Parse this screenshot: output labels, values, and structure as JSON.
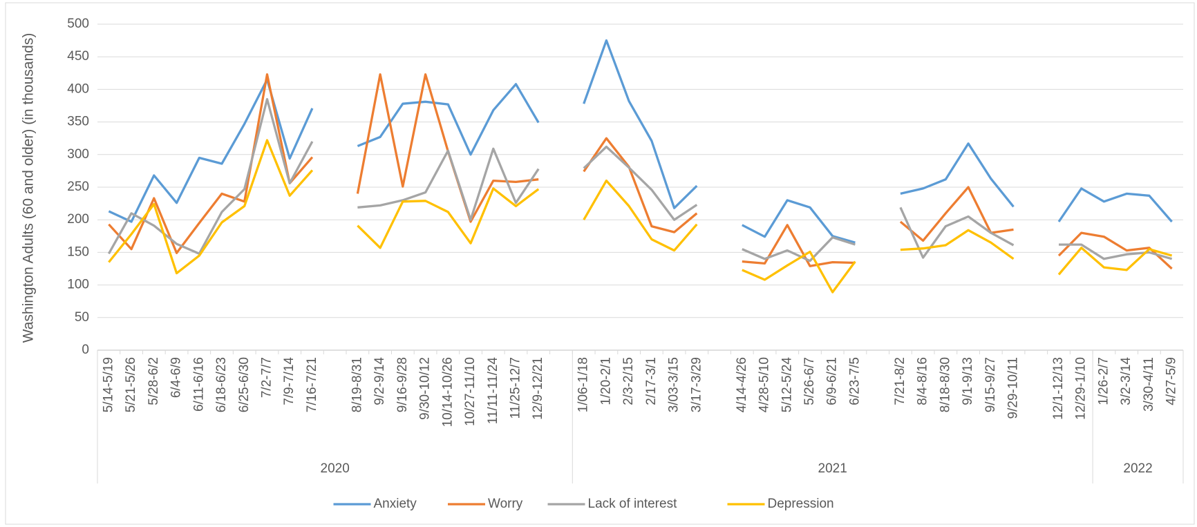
{
  "chart_data": {
    "type": "line",
    "y_label": "Washington Adults (60 and older) (in thousands)",
    "groups": [
      {
        "label": "2020",
        "categories": [
          "5/14-5/19",
          "5/21-5/26",
          "5/28-6/2",
          "6/4-6/9",
          "6/11-6/16",
          "6/18-6/23",
          "6/25-6/30",
          "7/2-7/7",
          "7/9-7/14",
          "7/16-7/21",
          null,
          "8/19-8/31",
          "9/2-9/14",
          "9/16-9/28",
          "9/30-10/12",
          "10/14-10/26",
          "10/27-11/10",
          "11/11-11/24",
          "11/25-12/7",
          "12/9-12/21",
          null
        ]
      },
      {
        "label": "2021",
        "categories": [
          "1/06-1/18",
          "1/20-2/1",
          "2/3-2/15",
          "2/17-3/1",
          "3/03-3/15",
          "3/17-3/29",
          null,
          "4/14-4/26",
          "4/28-5/10",
          "5/12-5/24",
          "5/26-6/7",
          "6/9-6/21",
          "6/23-7/5",
          null,
          "7/21-8/2",
          "8/4-8/16",
          "8/18-8/30",
          "9/1-9/13",
          "9/15-9/27",
          "9/29-10/11",
          null,
          "12/1-12/13",
          "12/29-1/10"
        ]
      },
      {
        "label": "2022",
        "categories": [
          "1/26-2/7",
          "3/2-3/14",
          "3/30-4/11",
          "4/27-5/9"
        ]
      }
    ],
    "series": [
      {
        "name": "Anxiety",
        "color": "#5b9bd5",
        "values": [
          213,
          197,
          268,
          226,
          295,
          286,
          347,
          415,
          294,
          371,
          null,
          313,
          327,
          378,
          381,
          377,
          300,
          368,
          408,
          349,
          null,
          378,
          475,
          382,
          321,
          218,
          252,
          null,
          192,
          174,
          230,
          219,
          175,
          165,
          null,
          240,
          248,
          262,
          317,
          263,
          220,
          null,
          197,
          248,
          228,
          240,
          237,
          197
        ]
      },
      {
        "name": "Worry",
        "color": "#ed7d31",
        "values": [
          193,
          155,
          233,
          149,
          195,
          240,
          228,
          423,
          256,
          296,
          null,
          240,
          423,
          251,
          423,
          305,
          197,
          260,
          258,
          262,
          null,
          274,
          325,
          281,
          190,
          181,
          210,
          null,
          136,
          133,
          192,
          129,
          135,
          134,
          null,
          197,
          168,
          210,
          250,
          180,
          185,
          null,
          145,
          180,
          174,
          153,
          157,
          125
        ]
      },
      {
        "name": "Lack of interest",
        "color": "#a5a5a5",
        "values": [
          148,
          210,
          191,
          163,
          148,
          212,
          247,
          385,
          256,
          320,
          null,
          219,
          222,
          230,
          242,
          306,
          200,
          309,
          226,
          278,
          null,
          279,
          312,
          280,
          246,
          200,
          223,
          null,
          155,
          140,
          153,
          137,
          173,
          162,
          null,
          219,
          142,
          190,
          205,
          180,
          161,
          null,
          162,
          162,
          140,
          147,
          150,
          140
        ]
      },
      {
        "name": "Depression",
        "color": "#ffc000",
        "values": [
          135,
          178,
          224,
          118,
          145,
          196,
          221,
          322,
          237,
          276,
          null,
          191,
          157,
          228,
          229,
          212,
          164,
          248,
          221,
          247,
          null,
          200,
          260,
          221,
          170,
          153,
          193,
          null,
          123,
          108,
          130,
          151,
          89,
          136,
          null,
          154,
          156,
          161,
          184,
          165,
          140,
          null,
          116,
          157,
          127,
          123,
          155,
          145
        ]
      }
    ],
    "ylim": [
      0,
      500
    ],
    "yticks": [
      0,
      50,
      100,
      150,
      200,
      250,
      300,
      350,
      400,
      450,
      500
    ],
    "grid": true
  }
}
